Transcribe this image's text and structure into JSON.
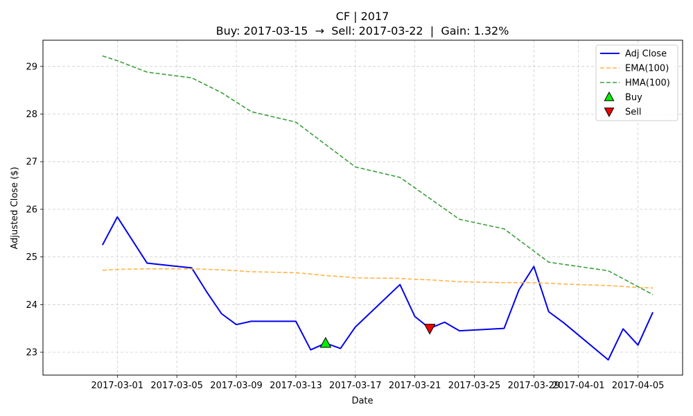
{
  "chart_data": {
    "type": "line",
    "title": "CF | 2017",
    "subtitle": "Buy: 2017-03-15  →  Sell: 2017-03-22  |  Gain: 1.32%",
    "xlabel": "Date",
    "ylabel": "Adjusted Close ($)",
    "xlim": [
      "2017-02-24",
      "2017-04-08"
    ],
    "ylim": [
      22.52,
      29.55
    ],
    "x_ticks": [
      "2017-03-01",
      "2017-03-05",
      "2017-03-09",
      "2017-03-13",
      "2017-03-17",
      "2017-03-21",
      "2017-03-25",
      "2017-03-29",
      "2017-04-01",
      "2017-04-05"
    ],
    "y_ticks": [
      23,
      24,
      25,
      26,
      27,
      28,
      29
    ],
    "grid": true,
    "legend_position": "top-right",
    "series": [
      {
        "name": "Adj Close",
        "color": "#0000ee",
        "style": "solid",
        "x": [
          "2017-02-28",
          "2017-03-01",
          "2017-03-03",
          "2017-03-06",
          "2017-03-07",
          "2017-03-08",
          "2017-03-09",
          "2017-03-10",
          "2017-03-13",
          "2017-03-14",
          "2017-03-15",
          "2017-03-16",
          "2017-03-17",
          "2017-03-20",
          "2017-03-21",
          "2017-03-22",
          "2017-03-23",
          "2017-03-24",
          "2017-03-27",
          "2017-03-28",
          "2017-03-29",
          "2017-03-30",
          "2017-03-31",
          "2017-04-03",
          "2017-04-04",
          "2017-04-05",
          "2017-04-06"
        ],
        "values": [
          25.25,
          25.84,
          24.87,
          24.77,
          24.27,
          23.81,
          23.58,
          23.65,
          23.65,
          23.05,
          23.19,
          23.08,
          23.53,
          24.42,
          23.75,
          23.5,
          23.63,
          23.45,
          23.5,
          24.31,
          24.8,
          23.85,
          23.62,
          22.84,
          23.49,
          23.15,
          23.84
        ]
      },
      {
        "name": "EMA(100)",
        "color": "#ffb347",
        "style": "dashed",
        "x": [
          "2017-02-28",
          "2017-03-01",
          "2017-03-03",
          "2017-03-06",
          "2017-03-07",
          "2017-03-08",
          "2017-03-09",
          "2017-03-10",
          "2017-03-13",
          "2017-03-14",
          "2017-03-15",
          "2017-03-16",
          "2017-03-17",
          "2017-03-20",
          "2017-03-21",
          "2017-03-22",
          "2017-03-23",
          "2017-03-24",
          "2017-03-27",
          "2017-03-28",
          "2017-03-29",
          "2017-03-30",
          "2017-03-31",
          "2017-04-03",
          "2017-04-04",
          "2017-04-05",
          "2017-04-06"
        ],
        "values": [
          24.72,
          24.74,
          24.75,
          24.75,
          24.74,
          24.73,
          24.71,
          24.69,
          24.67,
          24.64,
          24.61,
          24.59,
          24.56,
          24.55,
          24.53,
          24.52,
          24.5,
          24.48,
          24.46,
          24.46,
          24.46,
          24.45,
          24.43,
          24.4,
          24.38,
          24.36,
          24.35
        ]
      },
      {
        "name": "HMA(100)",
        "color": "#3a9e3a",
        "style": "dashed",
        "x": [
          "2017-02-28",
          "2017-03-01",
          "2017-03-03",
          "2017-03-06",
          "2017-03-08",
          "2017-03-10",
          "2017-03-13",
          "2017-03-17",
          "2017-03-20",
          "2017-03-24",
          "2017-03-27",
          "2017-03-30",
          "2017-04-03",
          "2017-04-06"
        ],
        "values": [
          29.22,
          29.12,
          28.88,
          28.76,
          28.45,
          28.05,
          27.83,
          26.89,
          26.67,
          25.79,
          25.59,
          24.89,
          24.71,
          24.21
        ]
      }
    ],
    "markers": [
      {
        "name": "Buy",
        "x": "2017-03-15",
        "y": 23.19,
        "shape": "triangle-up",
        "color": "#00ee00"
      },
      {
        "name": "Sell",
        "x": "2017-03-22",
        "y": 23.5,
        "shape": "triangle-down",
        "color": "#ee0000"
      }
    ]
  }
}
